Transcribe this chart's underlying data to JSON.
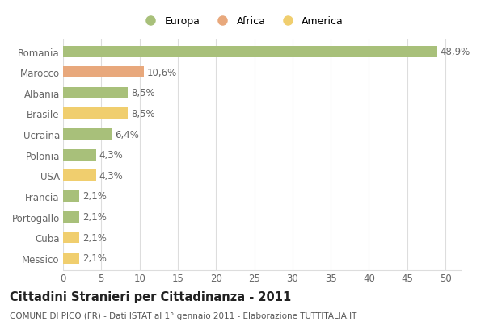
{
  "countries": [
    "Romania",
    "Marocco",
    "Albania",
    "Brasile",
    "Ucraina",
    "Polonia",
    "USA",
    "Francia",
    "Portogallo",
    "Cuba",
    "Messico"
  ],
  "values": [
    48.9,
    10.6,
    8.5,
    8.5,
    6.4,
    4.3,
    4.3,
    2.1,
    2.1,
    2.1,
    2.1
  ],
  "labels": [
    "48,9%",
    "10,6%",
    "8,5%",
    "8,5%",
    "6,4%",
    "4,3%",
    "4,3%",
    "2,1%",
    "2,1%",
    "2,1%",
    "2,1%"
  ],
  "colors": [
    "#a8c07a",
    "#e8a87c",
    "#a8c07a",
    "#f0ce6e",
    "#a8c07a",
    "#a8c07a",
    "#f0ce6e",
    "#a8c07a",
    "#a8c07a",
    "#f0ce6e",
    "#f0ce6e"
  ],
  "legend_labels": [
    "Europa",
    "Africa",
    "America"
  ],
  "legend_colors": [
    "#a8c07a",
    "#e8a87c",
    "#f0ce6e"
  ],
  "title": "Cittadini Stranieri per Cittadinanza - 2011",
  "subtitle": "COMUNE DI PICO (FR) - Dati ISTAT al 1° gennaio 2011 - Elaborazione TUTTITALIA.IT",
  "xlim": [
    0,
    52
  ],
  "xticks": [
    0,
    5,
    10,
    15,
    20,
    25,
    30,
    35,
    40,
    45,
    50
  ],
  "background_color": "#ffffff",
  "grid_color": "#dddddd",
  "bar_height": 0.55,
  "label_fontsize": 8.5,
  "tick_fontsize": 8.5,
  "title_fontsize": 10.5,
  "subtitle_fontsize": 7.5
}
